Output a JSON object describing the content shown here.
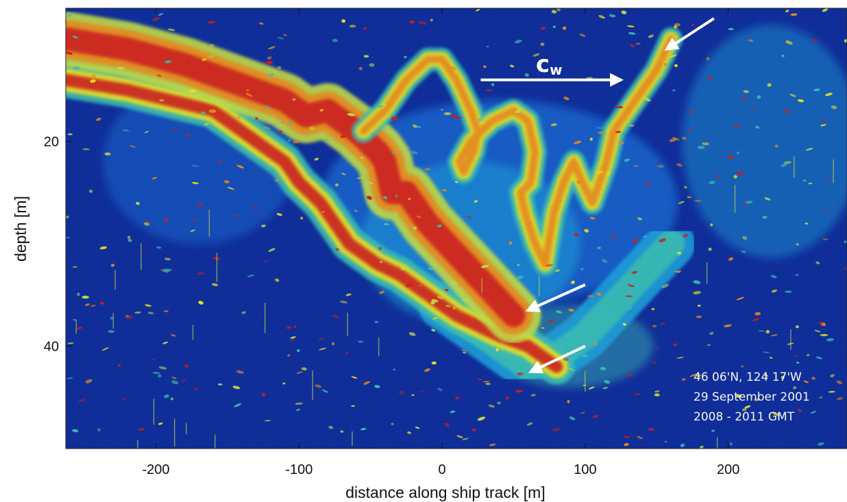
{
  "chart_data": {
    "type": "heatmap",
    "title": "",
    "xlabel": "distance along ship track [m]",
    "ylabel": "depth [m]",
    "xlim": [
      -263,
      283
    ],
    "ylim": [
      50,
      7
    ],
    "y_inverted": true,
    "xticks": [
      -200,
      -100,
      0,
      100,
      200
    ],
    "xtick_labels": [
      "-200",
      "-100",
      "0",
      "100",
      "200"
    ],
    "yticks": [
      20,
      40
    ],
    "ytick_labels": [
      "20",
      "40"
    ],
    "grid": false,
    "colormap": [
      "#0a1f8c",
      "#1560c8",
      "#1fa0d8",
      "#3bc0b0",
      "#c8e040",
      "#f5e616",
      "#f08a18",
      "#d41a12"
    ],
    "features": {
      "upper_layer": [
        [
          -263,
          10
        ],
        [
          -220,
          11
        ],
        [
          -180,
          12.5
        ],
        [
          -150,
          14
        ],
        [
          -130,
          15
        ],
        [
          -110,
          16
        ],
        [
          -95,
          17.5
        ],
        [
          -80,
          17
        ],
        [
          -60,
          19
        ],
        [
          -45,
          21
        ],
        [
          -40,
          22
        ],
        [
          -35,
          25
        ],
        [
          -25,
          25
        ],
        [
          -20,
          26
        ],
        [
          -10,
          28
        ],
        [
          10,
          31
        ],
        [
          30,
          34
        ],
        [
          50,
          37
        ]
      ],
      "lower_layer": [
        [
          -263,
          14
        ],
        [
          -220,
          15
        ],
        [
          -190,
          16
        ],
        [
          -160,
          17
        ],
        [
          -130,
          20
        ],
        [
          -110,
          22
        ],
        [
          -100,
          24
        ],
        [
          -85,
          26
        ],
        [
          -75,
          28
        ],
        [
          -65,
          30
        ],
        [
          -45,
          32
        ],
        [
          -30,
          33
        ],
        [
          -10,
          35
        ],
        [
          10,
          37
        ],
        [
          40,
          39
        ],
        [
          60,
          40
        ],
        [
          80,
          42
        ]
      ],
      "billow_layer": [
        [
          -55,
          19
        ],
        [
          -40,
          17
        ],
        [
          -25,
          14
        ],
        [
          -10,
          12
        ],
        [
          0,
          12
        ],
        [
          10,
          14
        ],
        [
          20,
          17
        ],
        [
          25,
          19
        ],
        [
          22,
          21
        ],
        [
          15,
          23
        ],
        [
          12,
          22
        ],
        [
          20,
          20
        ],
        [
          35,
          18
        ],
        [
          50,
          17
        ],
        [
          60,
          18
        ],
        [
          65,
          21
        ],
        [
          62,
          24
        ],
        [
          55,
          25
        ],
        [
          58,
          27
        ],
        [
          65,
          30
        ],
        [
          72,
          32
        ],
        [
          78,
          27
        ],
        [
          85,
          24
        ],
        [
          92,
          22
        ],
        [
          98,
          24
        ],
        [
          105,
          26
        ],
        [
          115,
          22
        ],
        [
          120,
          19
        ],
        [
          130,
          17
        ],
        [
          140,
          15
        ],
        [
          150,
          13
        ],
        [
          160,
          10
        ]
      ],
      "deep_diffuse_band": [
        [
          0,
          36
        ],
        [
          20,
          38
        ],
        [
          40,
          40
        ],
        [
          60,
          42
        ],
        [
          80,
          41
        ],
        [
          100,
          39
        ],
        [
          120,
          36
        ],
        [
          140,
          33
        ],
        [
          160,
          30
        ]
      ]
    },
    "annotations": {
      "flow_label": "c",
      "flow_label_subscript": "w",
      "location": "46 06'N, 124 17'W",
      "date": "29 September 2001",
      "time": "2008 - 2011 GMT"
    },
    "arrows": [
      {
        "name": "flow-arrow",
        "from": [
          27,
          14
        ],
        "to": [
          125,
          14
        ]
      },
      {
        "name": "top-right-arrow",
        "from": [
          190,
          8
        ],
        "to": [
          157,
          11
        ]
      },
      {
        "name": "middle-arrow",
        "from": [
          100,
          34
        ],
        "to": [
          60,
          36.5
        ]
      },
      {
        "name": "bottom-arrow",
        "from": [
          100,
          40
        ],
        "to": [
          62,
          42.5
        ]
      }
    ]
  }
}
